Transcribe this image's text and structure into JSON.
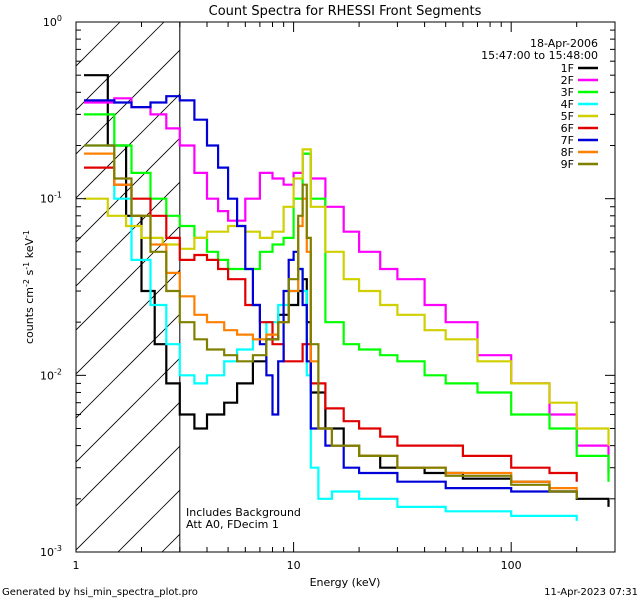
{
  "chart_data": {
    "type": "line",
    "title": "Count Spectra for RHESSI Front Segments",
    "xlabel": "Energy (keV)",
    "ylabel_parts": [
      "counts cm",
      "-2",
      " s",
      "-1",
      " keV",
      "-1"
    ],
    "x_scale": "log",
    "y_scale": "log",
    "xlim": [
      1,
      300
    ],
    "ylim": [
      0.001,
      1
    ],
    "x_ticks": [
      {
        "value": 1,
        "label": "1"
      },
      {
        "value": 10,
        "label": "10"
      },
      {
        "value": 100,
        "label": "100"
      }
    ],
    "y_ticks": [
      {
        "value": 0.001,
        "base": "10",
        "exp": "-3"
      },
      {
        "value": 0.01,
        "base": "10",
        "exp": "-2"
      },
      {
        "value": 0.1,
        "base": "10",
        "exp": "-1"
      },
      {
        "value": 1,
        "base": "10",
        "exp": "0"
      }
    ],
    "shaded_region_x": [
      1,
      3
    ],
    "legend": {
      "date": "18-Apr-2006",
      "time_range": "15:47:00 to 15:48:00",
      "position": "top-right"
    },
    "annotations": [
      "Includes Background",
      "Att A0, FDecim 1"
    ],
    "series": [
      {
        "name": "1F",
        "color": "#000000",
        "points": [
          [
            1.2,
            0.5
          ],
          [
            1.4,
            0.2
          ],
          [
            1.7,
            0.08
          ],
          [
            2.0,
            0.03
          ],
          [
            2.3,
            0.015
          ],
          [
            2.6,
            0.009
          ],
          [
            3.0,
            0.006
          ],
          [
            3.5,
            0.005
          ],
          [
            4.0,
            0.006
          ],
          [
            4.8,
            0.007
          ],
          [
            5.5,
            0.009
          ],
          [
            6.5,
            0.012
          ],
          [
            7.5,
            0.016
          ],
          [
            8.5,
            0.022
          ],
          [
            9.5,
            0.025
          ],
          [
            10.5,
            0.03
          ],
          [
            11.0,
            0.035
          ],
          [
            11.5,
            0.02
          ],
          [
            12,
            0.008
          ],
          [
            14,
            0.005
          ],
          [
            17,
            0.004
          ],
          [
            20,
            0.0035
          ],
          [
            25,
            0.003
          ],
          [
            30,
            0.003
          ],
          [
            40,
            0.0028
          ],
          [
            60,
            0.0026
          ],
          [
            100,
            0.0025
          ],
          [
            150,
            0.0022
          ],
          [
            200,
            0.002
          ],
          [
            280,
            0.0018
          ]
        ]
      },
      {
        "name": "2F",
        "color": "#ff00ff",
        "points": [
          [
            1.2,
            0.35
          ],
          [
            1.5,
            0.37
          ],
          [
            1.8,
            0.33
          ],
          [
            2.2,
            0.3
          ],
          [
            2.6,
            0.25
          ],
          [
            3.0,
            0.2
          ],
          [
            3.5,
            0.14
          ],
          [
            4.0,
            0.1
          ],
          [
            4.5,
            0.085
          ],
          [
            5.0,
            0.075
          ],
          [
            6.0,
            0.1
          ],
          [
            7.0,
            0.14
          ],
          [
            8.0,
            0.13
          ],
          [
            9.0,
            0.12
          ],
          [
            10.0,
            0.14
          ],
          [
            11.0,
            0.18
          ],
          [
            12,
            0.13
          ],
          [
            14,
            0.09
          ],
          [
            17,
            0.065
          ],
          [
            20,
            0.05
          ],
          [
            25,
            0.04
          ],
          [
            30,
            0.035
          ],
          [
            40,
            0.025
          ],
          [
            50,
            0.02
          ],
          [
            70,
            0.013
          ],
          [
            100,
            0.009
          ],
          [
            150,
            0.006
          ],
          [
            200,
            0.004
          ],
          [
            280,
            0.0028
          ]
        ]
      },
      {
        "name": "3F",
        "color": "#00ff00",
        "points": [
          [
            1.2,
            0.3
          ],
          [
            1.5,
            0.2
          ],
          [
            1.8,
            0.14
          ],
          [
            2.2,
            0.1
          ],
          [
            2.6,
            0.08
          ],
          [
            3.0,
            0.07
          ],
          [
            3.5,
            0.06
          ],
          [
            4.0,
            0.05
          ],
          [
            4.5,
            0.045
          ],
          [
            5.0,
            0.04
          ],
          [
            6.0,
            0.04
          ],
          [
            7.0,
            0.05
          ],
          [
            8.0,
            0.055
          ],
          [
            9.0,
            0.06
          ],
          [
            10.0,
            0.1
          ],
          [
            11.0,
            0.18
          ],
          [
            12,
            0.1
          ],
          [
            14,
            0.02
          ],
          [
            17,
            0.015
          ],
          [
            20,
            0.014
          ],
          [
            25,
            0.013
          ],
          [
            30,
            0.012
          ],
          [
            40,
            0.01
          ],
          [
            50,
            0.009
          ],
          [
            70,
            0.008
          ],
          [
            100,
            0.006
          ],
          [
            150,
            0.005
          ],
          [
            200,
            0.0035
          ],
          [
            280,
            0.0025
          ]
        ]
      },
      {
        "name": "4F",
        "color": "#00ffff",
        "points": [
          [
            1.2,
            0.2
          ],
          [
            1.5,
            0.1
          ],
          [
            1.8,
            0.045
          ],
          [
            2.2,
            0.025
          ],
          [
            2.6,
            0.015
          ],
          [
            3.0,
            0.01
          ],
          [
            3.5,
            0.009
          ],
          [
            4.0,
            0.01
          ],
          [
            4.8,
            0.012
          ],
          [
            5.5,
            0.014
          ],
          [
            6.5,
            0.016
          ],
          [
            7.5,
            0.02
          ],
          [
            8.5,
            0.025
          ],
          [
            9.5,
            0.03
          ],
          [
            10.5,
            0.04
          ],
          [
            11.0,
            0.03
          ],
          [
            11.5,
            0.01
          ],
          [
            12,
            0.003
          ],
          [
            13,
            0.002
          ],
          [
            15,
            0.0022
          ],
          [
            20,
            0.002
          ],
          [
            30,
            0.0018
          ],
          [
            50,
            0.0017
          ],
          [
            100,
            0.0016
          ],
          [
            200,
            0.0015
          ]
        ]
      },
      {
        "name": "5F",
        "color": "#d0d000",
        "points": [
          [
            1.2,
            0.1
          ],
          [
            1.4,
            0.08
          ],
          [
            1.7,
            0.07
          ],
          [
            2.0,
            0.06
          ],
          [
            2.5,
            0.055
          ],
          [
            3.0,
            0.052
          ],
          [
            3.5,
            0.06
          ],
          [
            4.0,
            0.065
          ],
          [
            5.0,
            0.07
          ],
          [
            6.0,
            0.065
          ],
          [
            7.0,
            0.06
          ],
          [
            8.0,
            0.065
          ],
          [
            9.0,
            0.09
          ],
          [
            10.0,
            0.13
          ],
          [
            11.0,
            0.19
          ],
          [
            12,
            0.09
          ],
          [
            14,
            0.05
          ],
          [
            17,
            0.035
          ],
          [
            20,
            0.03
          ],
          [
            25,
            0.025
          ],
          [
            30,
            0.022
          ],
          [
            40,
            0.018
          ],
          [
            50,
            0.016
          ],
          [
            70,
            0.012
          ],
          [
            100,
            0.009
          ],
          [
            150,
            0.007
          ],
          [
            200,
            0.005
          ],
          [
            280,
            0.004
          ]
        ]
      },
      {
        "name": "6F",
        "color": "#e00000",
        "points": [
          [
            1.2,
            0.15
          ],
          [
            1.5,
            0.12
          ],
          [
            1.8,
            0.1
          ],
          [
            2.2,
            0.08
          ],
          [
            2.6,
            0.06
          ],
          [
            3.0,
            0.045
          ],
          [
            3.5,
            0.048
          ],
          [
            4.0,
            0.045
          ],
          [
            4.5,
            0.04
          ],
          [
            5.0,
            0.035
          ],
          [
            6.0,
            0.025
          ],
          [
            7.0,
            0.02
          ],
          [
            8.0,
            0.015
          ],
          [
            9.0,
            0.012
          ],
          [
            10.0,
            0.012
          ],
          [
            11.0,
            0.015
          ],
          [
            12,
            0.009
          ],
          [
            14,
            0.0065
          ],
          [
            17,
            0.0055
          ],
          [
            20,
            0.005
          ],
          [
            25,
            0.0045
          ],
          [
            30,
            0.004
          ],
          [
            40,
            0.004
          ],
          [
            60,
            0.0035
          ],
          [
            100,
            0.003
          ],
          [
            150,
            0.0028
          ],
          [
            200,
            0.0025
          ]
        ]
      },
      {
        "name": "7F",
        "color": "#0000d8",
        "points": [
          [
            1.2,
            0.36
          ],
          [
            1.5,
            0.35
          ],
          [
            1.8,
            0.33
          ],
          [
            2.2,
            0.35
          ],
          [
            2.6,
            0.38
          ],
          [
            3.0,
            0.36
          ],
          [
            3.5,
            0.28
          ],
          [
            4.0,
            0.2
          ],
          [
            4.5,
            0.15
          ],
          [
            5.0,
            0.1
          ],
          [
            5.5,
            0.07
          ],
          [
            6.0,
            0.04
          ],
          [
            6.5,
            0.025
          ],
          [
            7.0,
            0.015
          ],
          [
            7.5,
            0.01
          ],
          [
            8.0,
            0.006
          ],
          [
            8.5,
            0.012
          ],
          [
            9.0,
            0.03
          ],
          [
            9.5,
            0.045
          ],
          [
            10.0,
            0.05
          ],
          [
            10.5,
            0.04
          ],
          [
            11.0,
            0.025
          ],
          [
            11.5,
            0.012
          ],
          [
            12,
            0.005
          ],
          [
            14,
            0.004
          ],
          [
            17,
            0.003
          ],
          [
            20,
            0.0028
          ],
          [
            30,
            0.0025
          ],
          [
            50,
            0.0023
          ],
          [
            100,
            0.0022
          ],
          [
            200,
            0.0021
          ]
        ]
      },
      {
        "name": "8F",
        "color": "#ff8000",
        "points": [
          [
            1.2,
            0.18
          ],
          [
            1.5,
            0.12
          ],
          [
            1.8,
            0.08
          ],
          [
            2.2,
            0.055
          ],
          [
            2.6,
            0.038
          ],
          [
            3.0,
            0.028
          ],
          [
            3.5,
            0.022
          ],
          [
            4.0,
            0.02
          ],
          [
            4.8,
            0.018
          ],
          [
            5.5,
            0.017
          ],
          [
            6.5,
            0.016
          ],
          [
            7.5,
            0.017
          ],
          [
            8.5,
            0.02
          ],
          [
            9.5,
            0.03
          ],
          [
            10.5,
            0.07
          ],
          [
            11.0,
            0.1
          ],
          [
            11.5,
            0.05
          ],
          [
            12,
            0.012
          ],
          [
            13,
            0.005
          ],
          [
            15,
            0.004
          ],
          [
            20,
            0.0035
          ],
          [
            30,
            0.003
          ],
          [
            50,
            0.0028
          ],
          [
            100,
            0.0025
          ],
          [
            150,
            0.0023
          ],
          [
            200,
            0.002
          ]
        ]
      },
      {
        "name": "9F",
        "color": "#808000",
        "points": [
          [
            1.2,
            0.2
          ],
          [
            1.5,
            0.13
          ],
          [
            1.8,
            0.08
          ],
          [
            2.2,
            0.05
          ],
          [
            2.6,
            0.03
          ],
          [
            3.0,
            0.02
          ],
          [
            3.5,
            0.016
          ],
          [
            4.0,
            0.014
          ],
          [
            4.8,
            0.013
          ],
          [
            5.5,
            0.012
          ],
          [
            6.5,
            0.013
          ],
          [
            7.5,
            0.016
          ],
          [
            8.5,
            0.02
          ],
          [
            9.5,
            0.035
          ],
          [
            10.5,
            0.08
          ],
          [
            11.0,
            0.12
          ],
          [
            11.5,
            0.06
          ],
          [
            12,
            0.015
          ],
          [
            13,
            0.005
          ],
          [
            15,
            0.004
          ],
          [
            20,
            0.0035
          ],
          [
            30,
            0.003
          ],
          [
            50,
            0.0027
          ],
          [
            100,
            0.0024
          ],
          [
            150,
            0.0022
          ],
          [
            200,
            0.002
          ]
        ]
      }
    ]
  },
  "footer": {
    "generator": "Generated by hsi_min_spectra_plot.pro",
    "timestamp": "11-Apr-2023 07:31"
  }
}
